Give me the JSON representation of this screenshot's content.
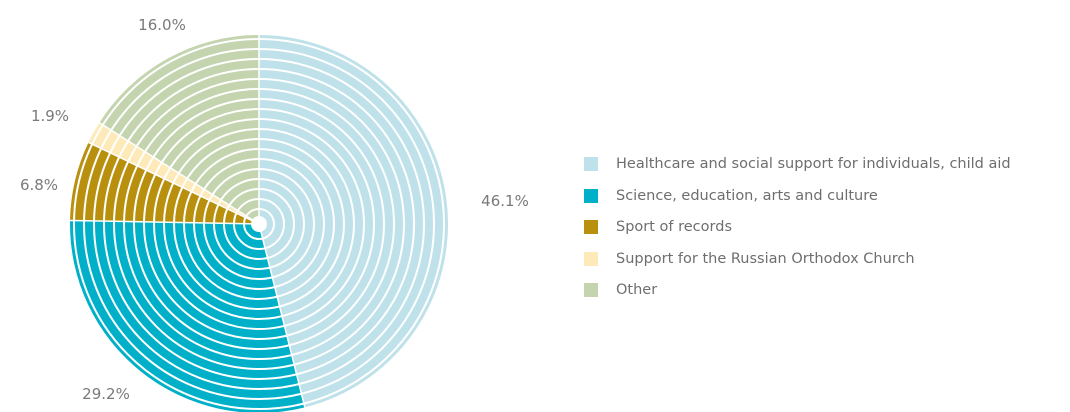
{
  "chart_data": {
    "type": "pie",
    "slices": [
      {
        "label": "Healthcare and social support for individuals, child aid",
        "value": 46.1,
        "value_label": "46.1%",
        "color": "#bfe1ea"
      },
      {
        "label": "Science, education, arts and culture",
        "value": 29.2,
        "value_label": "29.2%",
        "color": "#00b0c8"
      },
      {
        "label": "Sport of records",
        "value": 6.8,
        "value_label": "6.8%",
        "color": "#b8900e"
      },
      {
        "label": "Support for the Russian Orthodox Church",
        "value": 1.9,
        "value_label": "1.9%",
        "color": "#fdeab8"
      },
      {
        "label": "Other",
        "value": 16.0,
        "value_label": "16.0%",
        "color": "#c3d4ae"
      }
    ],
    "start": "12 o'clock",
    "direction": "clockwise",
    "legend_position": "right"
  }
}
